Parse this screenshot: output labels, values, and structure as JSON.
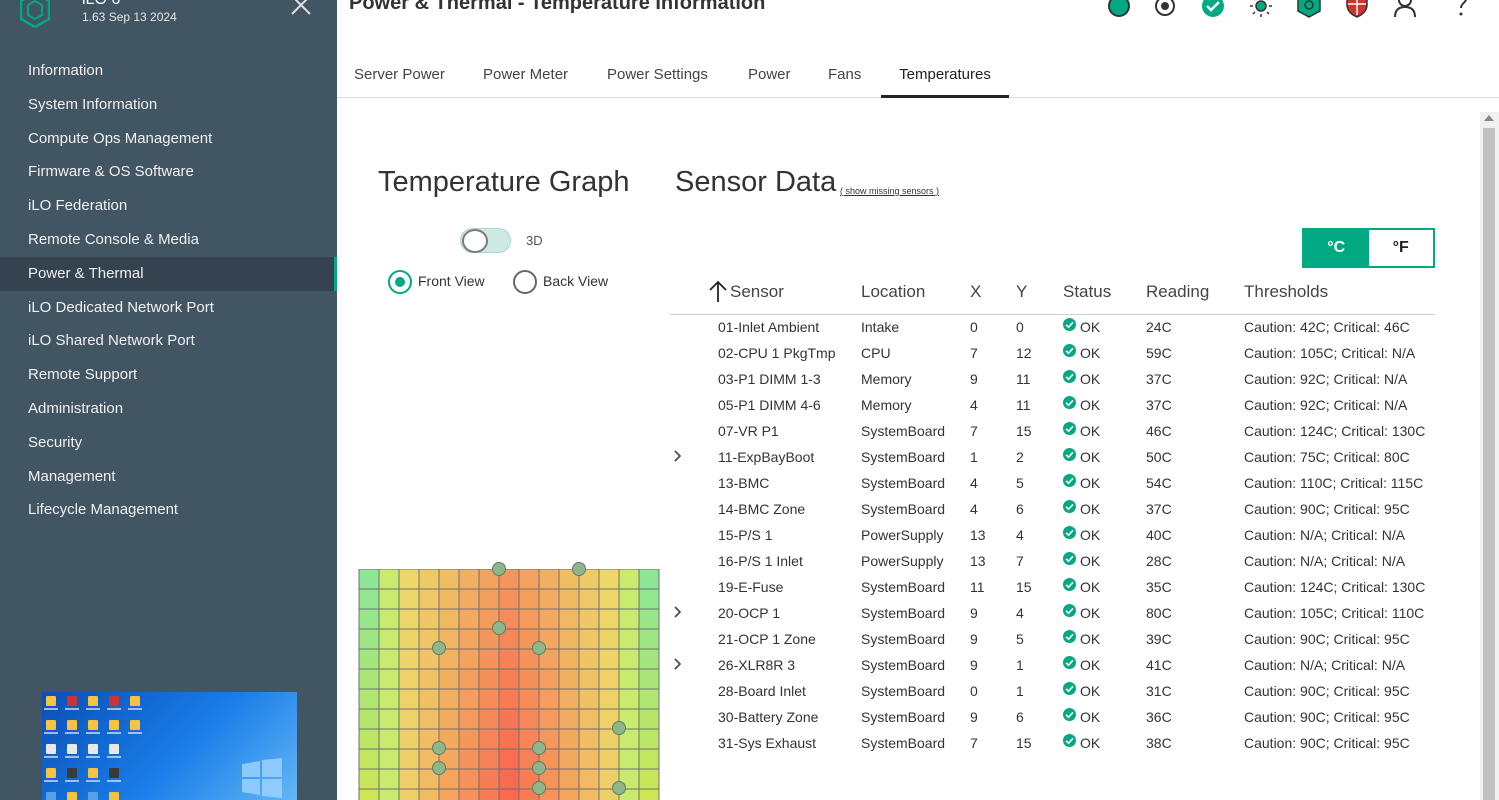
{
  "app": {
    "name": "iLO 6",
    "version": "1.63 Sep 13 2024"
  },
  "header": {
    "title": "Power & Thermal - Temperature Information"
  },
  "header_icons": [
    "health-status-icon",
    "target-icon",
    "check-icon",
    "sun-icon",
    "shield-icon",
    "security-shield-icon",
    "user-icon",
    "help-icon"
  ],
  "sidebar": {
    "items": [
      {
        "label": "Information"
      },
      {
        "label": "System Information"
      },
      {
        "label": "Compute Ops Management"
      },
      {
        "label": "Firmware & OS Software"
      },
      {
        "label": "iLO Federation"
      },
      {
        "label": "Remote Console & Media"
      },
      {
        "label": "Power & Thermal",
        "active": true
      },
      {
        "label": "iLO Dedicated Network Port"
      },
      {
        "label": "iLO Shared Network Port"
      },
      {
        "label": "Remote Support"
      },
      {
        "label": "Administration"
      },
      {
        "label": "Security"
      },
      {
        "label": "Management"
      },
      {
        "label": "Lifecycle Management"
      }
    ]
  },
  "tabs": [
    {
      "label": "Server Power"
    },
    {
      "label": "Power Meter"
    },
    {
      "label": "Power Settings"
    },
    {
      "label": "Power"
    },
    {
      "label": "Fans"
    },
    {
      "label": "Temperatures",
      "active": true
    }
  ],
  "graph": {
    "title": "Temperature Graph",
    "toggle_label": "3D",
    "front_view_label": "Front View",
    "back_view_label": "Back View",
    "selected_view": "front"
  },
  "sensor_data": {
    "title": "Sensor Data",
    "show_missing_link": "( show missing sensors )",
    "unit_celsius": "°C",
    "unit_fahrenheit": "°F",
    "selected_unit": "celsius",
    "columns": {
      "sensor": "Sensor",
      "location": "Location",
      "x": "X",
      "y": "Y",
      "status": "Status",
      "reading": "Reading",
      "thresholds": "Thresholds"
    },
    "rows": [
      {
        "sensor": "01-Inlet Ambient",
        "location": "Intake",
        "x": "0",
        "y": "0",
        "status": "OK",
        "reading": "24C",
        "thresholds": "Caution: 42C; Critical: 46C"
      },
      {
        "sensor": "02-CPU 1 PkgTmp",
        "location": "CPU",
        "x": "7",
        "y": "12",
        "status": "OK",
        "reading": "59C",
        "thresholds": "Caution: 105C; Critical: N/A"
      },
      {
        "sensor": "03-P1 DIMM 1-3",
        "location": "Memory",
        "x": "9",
        "y": "11",
        "status": "OK",
        "reading": "37C",
        "thresholds": "Caution: 92C; Critical: N/A"
      },
      {
        "sensor": "05-P1 DIMM 4-6",
        "location": "Memory",
        "x": "4",
        "y": "11",
        "status": "OK",
        "reading": "37C",
        "thresholds": "Caution: 92C; Critical: N/A"
      },
      {
        "sensor": "07-VR P1",
        "location": "SystemBoard",
        "x": "7",
        "y": "15",
        "status": "OK",
        "reading": "46C",
        "thresholds": "Caution: 124C; Critical: 130C"
      },
      {
        "sensor": "11-ExpBayBoot",
        "location": "SystemBoard",
        "x": "1",
        "y": "2",
        "status": "OK",
        "reading": "50C",
        "thresholds": "Caution: 75C; Critical: 80C",
        "expandable": true
      },
      {
        "sensor": "13-BMC",
        "location": "SystemBoard",
        "x": "4",
        "y": "5",
        "status": "OK",
        "reading": "54C",
        "thresholds": "Caution: 110C; Critical: 115C"
      },
      {
        "sensor": "14-BMC Zone",
        "location": "SystemBoard",
        "x": "4",
        "y": "6",
        "status": "OK",
        "reading": "37C",
        "thresholds": "Caution: 90C; Critical: 95C"
      },
      {
        "sensor": "15-P/S 1",
        "location": "PowerSupply",
        "x": "13",
        "y": "4",
        "status": "OK",
        "reading": "40C",
        "thresholds": "Caution: N/A; Critical: N/A"
      },
      {
        "sensor": "16-P/S 1 Inlet",
        "location": "PowerSupply",
        "x": "13",
        "y": "7",
        "status": "OK",
        "reading": "28C",
        "thresholds": "Caution: N/A; Critical: N/A"
      },
      {
        "sensor": "19-E-Fuse",
        "location": "SystemBoard",
        "x": "11",
        "y": "15",
        "status": "OK",
        "reading": "35C",
        "thresholds": "Caution: 124C; Critical: 130C"
      },
      {
        "sensor": "20-OCP 1",
        "location": "SystemBoard",
        "x": "9",
        "y": "4",
        "status": "OK",
        "reading": "80C",
        "thresholds": "Caution: 105C; Critical: 110C",
        "expandable": true
      },
      {
        "sensor": "21-OCP 1 Zone",
        "location": "SystemBoard",
        "x": "9",
        "y": "5",
        "status": "OK",
        "reading": "39C",
        "thresholds": "Caution: 90C; Critical: 95C"
      },
      {
        "sensor": "26-XLR8R 3",
        "location": "SystemBoard",
        "x": "9",
        "y": "1",
        "status": "OK",
        "reading": "41C",
        "thresholds": "Caution: N/A; Critical: N/A",
        "expandable": true
      },
      {
        "sensor": "28-Board Inlet",
        "location": "SystemBoard",
        "x": "0",
        "y": "1",
        "status": "OK",
        "reading": "31C",
        "thresholds": "Caution: 90C; Critical: 95C"
      },
      {
        "sensor": "30-Battery Zone",
        "location": "SystemBoard",
        "x": "9",
        "y": "6",
        "status": "OK",
        "reading": "36C",
        "thresholds": "Caution: 90C; Critical: 95C"
      },
      {
        "sensor": "31-Sys Exhaust",
        "location": "SystemBoard",
        "x": "7",
        "y": "15",
        "status": "OK",
        "reading": "38C",
        "thresholds": "Caution: 90C; Critical: 95C"
      }
    ]
  },
  "colors": {
    "accent": "#01a982",
    "sidebar": "#425563",
    "sidebar_active": "#354350"
  }
}
